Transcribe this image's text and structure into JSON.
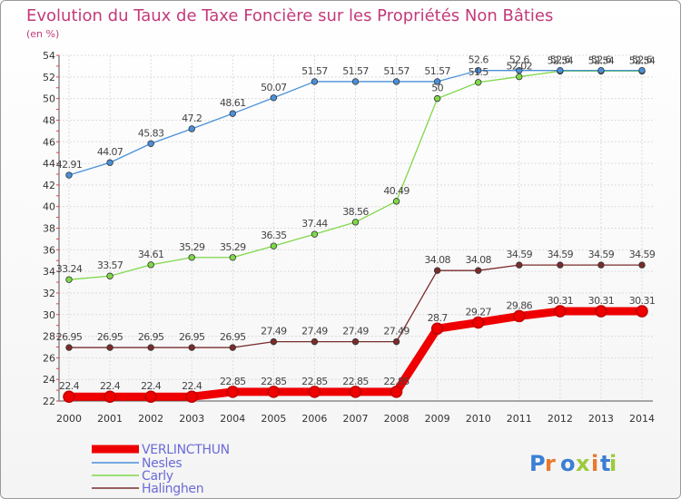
{
  "chart_data": {
    "type": "line",
    "title": "Evolution du Taux de Taxe Foncière sur les Propriétés Non Bâties",
    "subtitle": "(en %)",
    "xlabel": "",
    "ylabel": "(en %)",
    "x": [
      "2000",
      "2001",
      "2002",
      "2003",
      "2004",
      "2005",
      "2006",
      "2007",
      "2008",
      "2009",
      "2010",
      "2011",
      "2012",
      "2013",
      "2014"
    ],
    "ylim": [
      22,
      54
    ],
    "yticks": [
      "22",
      "24",
      "26",
      "28",
      "30",
      "32",
      "34",
      "36",
      "38",
      "40",
      "42",
      "44",
      "46",
      "48",
      "50",
      "52",
      "54"
    ],
    "series": [
      {
        "name": "VERLINCTHUN",
        "color": "#ee0000",
        "values": [
          22.4,
          22.4,
          22.4,
          22.4,
          22.85,
          22.85,
          22.85,
          22.85,
          22.85,
          28.7,
          29.27,
          29.86,
          30.31,
          30.31,
          30.31
        ],
        "labels": [
          "22.4",
          "22.4",
          "22.4",
          "22.4",
          "22.85",
          "22.85",
          "22.85",
          "22.85",
          "22.85",
          "28.7",
          "29.27",
          "29.86",
          "30.31",
          "30.31",
          "30.31"
        ]
      },
      {
        "name": "Nesles",
        "color": "#4a90d9",
        "values": [
          42.91,
          44.07,
          45.83,
          47.2,
          48.61,
          50.07,
          51.57,
          51.57,
          51.57,
          51.57,
          52.6,
          52.6,
          52.6,
          52.6,
          52.6
        ],
        "labels": [
          "42.91",
          "44.07",
          "45.83",
          "47.2",
          "48.61",
          "50.07",
          "51.57",
          "51.57",
          "51.57",
          "51.57",
          "52.6",
          "52.6",
          "52.6",
          "52.6",
          "52.6"
        ]
      },
      {
        "name": "Carly",
        "color": "#7fd84a",
        "values": [
          33.24,
          33.57,
          34.61,
          35.29,
          35.29,
          36.35,
          37.44,
          38.56,
          40.49,
          50,
          51.5,
          52.02,
          52.54,
          52.54,
          52.54
        ],
        "labels": [
          "33.24",
          "33.57",
          "34.61",
          "35.29",
          "35.29",
          "36.35",
          "37.44",
          "38.56",
          "40.49",
          "50",
          "51.5",
          "52.02",
          "52.54",
          "52.54",
          "52.54"
        ]
      },
      {
        "name": "Halinghen",
        "color": "#7a2c2c",
        "values": [
          26.95,
          26.95,
          26.95,
          26.95,
          26.95,
          27.49,
          27.49,
          27.49,
          27.49,
          34.08,
          34.08,
          34.59,
          34.59,
          34.59,
          34.59
        ],
        "labels": [
          "26.95",
          "26.95",
          "26.95",
          "26.95",
          "26.95",
          "27.49",
          "27.49",
          "27.49",
          "27.49",
          "34.08",
          "34.08",
          "34.59",
          "34.59",
          "34.59",
          "34.59"
        ]
      }
    ],
    "legend": [
      "VERLINCTHUN",
      "Nesles",
      "Carly",
      "Halinghen"
    ],
    "grid": true
  },
  "logo": "Proxiti"
}
